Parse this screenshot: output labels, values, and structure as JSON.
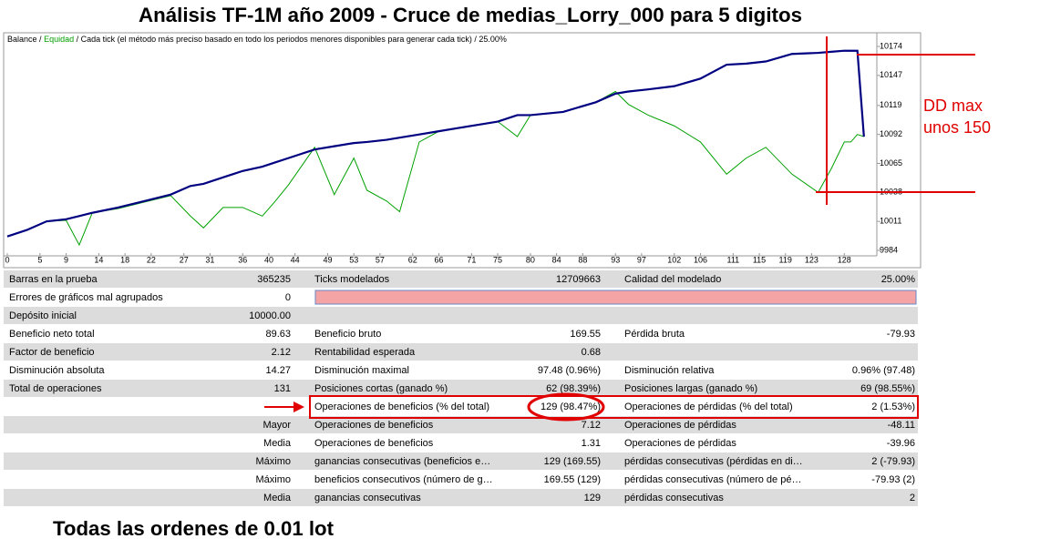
{
  "title": "Análisis TF-1M año 2009 - Cruce de medias_Lorry_000 para   5 digitos",
  "chart_data": {
    "type": "line",
    "legend_separator": "/",
    "subtitle": "/ Cada tick (el método más preciso basado en todo los periodos menores disponibles para generar cada tick)  / 25.00%",
    "x": [
      0,
      3,
      6,
      9,
      11,
      13,
      17,
      21,
      25,
      28,
      30,
      33,
      36,
      39,
      41,
      43,
      47,
      50,
      53,
      55,
      58,
      60,
      63,
      66,
      69,
      72,
      75,
      78,
      80,
      85,
      90,
      93,
      95,
      98,
      102,
      106,
      110,
      113,
      116,
      120,
      124,
      126,
      128,
      129,
      130,
      131
    ],
    "series": [
      {
        "name": "Balance",
        "color": "#000080",
        "values": [
          9997,
          10003,
          10011,
          10013,
          10016,
          10019,
          10024,
          10030,
          10036,
          10044,
          10046,
          10052,
          10058,
          10062,
          10066,
          10070,
          10078,
          10081,
          10084,
          10085,
          10087,
          10089,
          10092,
          10095,
          10098,
          10101,
          10104,
          10110,
          10110,
          10113,
          10122,
          10130,
          10132,
          10134,
          10137,
          10144,
          10157,
          10158,
          10160,
          10167,
          10168,
          10169,
          10170,
          10170,
          10170,
          10090
        ]
      },
      {
        "name": "Equidad",
        "color": "#00a000",
        "values": [
          9997,
          10003,
          10011,
          10012,
          9989,
          10019,
          10023,
          10029,
          10035,
          10016,
          10005,
          10024,
          10024,
          10016,
          10030,
          10045,
          10080,
          10036,
          10070,
          10040,
          10030,
          10020,
          10085,
          10095,
          10098,
          10101,
          10104,
          10090,
          10110,
          10113,
          10122,
          10132,
          10120,
          10110,
          10100,
          10085,
          10055,
          10070,
          10080,
          10055,
          10038,
          10060,
          10085,
          10085,
          10092,
          10090
        ]
      }
    ],
    "xlim": [
      0,
      132
    ],
    "xticks": [
      0,
      5,
      9,
      14,
      18,
      22,
      27,
      31,
      36,
      40,
      44,
      49,
      53,
      57,
      62,
      66,
      71,
      75,
      80,
      84,
      88,
      93,
      97,
      102,
      106,
      111,
      115,
      119,
      123,
      128
    ],
    "ylim": [
      9984,
      10174
    ],
    "yticks": [
      9984,
      10011,
      10038,
      10065,
      10092,
      10119,
      10147,
      10174
    ]
  },
  "annotation": {
    "line1": "DD max",
    "line2": "unos 150"
  },
  "table": {
    "rows": [
      [
        "Barras en la prueba",
        "365235",
        "Ticks modelados",
        "12709663",
        "Calidad del modelado",
        "25.00%"
      ],
      [
        "Errores de gráficos mal agrupados",
        "0",
        null,
        null,
        null,
        null
      ],
      [
        "Depósito inicial",
        "10000.00",
        null,
        null,
        null,
        null
      ],
      [
        "Beneficio neto total",
        "89.63",
        "Beneficio bruto",
        "169.55",
        "Pérdida bruta",
        "-79.93"
      ],
      [
        "Factor de beneficio",
        "2.12",
        "Rentabilidad esperada",
        "0.68",
        null,
        null
      ],
      [
        "Disminución absoluta",
        "14.27",
        "Disminución maximal",
        "97.48 (0.96%)",
        "Disminución relativa",
        "0.96% (97.48)"
      ],
      [
        "Total de operaciones",
        "131",
        "Posiciones cortas (ganado %)",
        "62 (98.39%)",
        "Posiciones largas (ganado %)",
        "69 (98.55%)"
      ],
      [
        null,
        null,
        "Operaciones de beneficios (% del total)",
        "129 (98.47%)",
        "Operaciones de pérdidas (% del total)",
        "2 (1.53%)"
      ],
      [
        null,
        "Mayor",
        "Operaciones de beneficios",
        "7.12",
        "Operaciones de pérdidas",
        "-48.11"
      ],
      [
        null,
        "Media",
        "Operaciones de beneficios",
        "1.31",
        "Operaciones de pérdidas",
        "-39.96"
      ],
      [
        null,
        "Máximo",
        "ganancias consecutivas (beneficios e…",
        "129 (169.55)",
        "pérdidas consecutivas (pérdidas en di…",
        "2 (-79.93)"
      ],
      [
        null,
        "Máximo",
        "beneficios consecutivos (número de g…",
        "169.55 (129)",
        "pérdidas consecutivas (número de pé…",
        "-79.93 (2)"
      ],
      [
        null,
        "Media",
        "ganancias consecutivas",
        "129",
        "pérdidas consecutivas",
        "2"
      ]
    ]
  },
  "footer": "Todas las ordenes de 0.01 lot"
}
